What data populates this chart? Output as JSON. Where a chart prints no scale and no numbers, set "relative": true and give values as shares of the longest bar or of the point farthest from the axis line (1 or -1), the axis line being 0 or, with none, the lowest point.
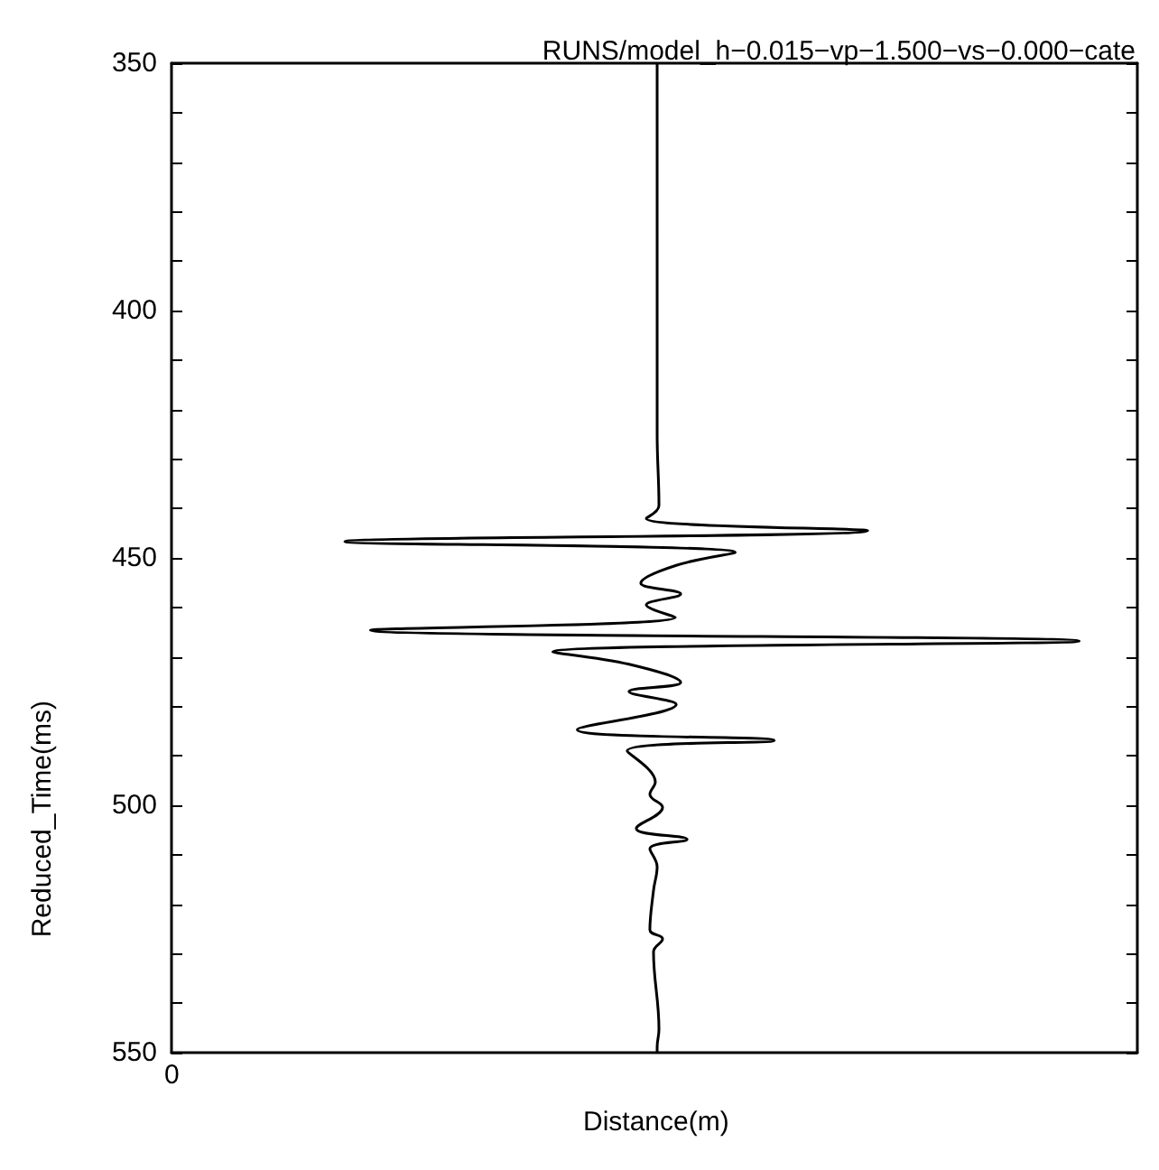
{
  "chart_data": {
    "type": "line",
    "title": "RUNS/model_h−0.015−vp−1.500−vs−0.000−cate",
    "xlabel": "Distance(m)",
    "ylabel": "Reduced_Time(ms)",
    "orientation": "horizontal",
    "relative": true,
    "marker": "none",
    "annotations": [
      "0"
    ],
    "ylim": [
      550,
      350
    ],
    "yticks": [
      350,
      {
        "value": 360,
        "label": null
      },
      {
        "value": 370,
        "label": null
      },
      {
        "value": 380,
        "label": null
      },
      {
        "value": 390,
        "label": null
      },
      400,
      {
        "value": 410,
        "label": null
      },
      {
        "value": 420,
        "label": null
      },
      {
        "value": 430,
        "label": null
      },
      {
        "value": 440,
        "label": null
      },
      450,
      {
        "value": 460,
        "label": null
      },
      {
        "value": 470,
        "label": null
      },
      {
        "value": 480,
        "label": null
      },
      {
        "value": 490,
        "label": null
      },
      500,
      {
        "value": 510,
        "label": null
      },
      {
        "value": 520,
        "label": null
      },
      {
        "value": 530,
        "label": null
      },
      {
        "value": 540,
        "label": null
      },
      550
    ],
    "series": [
      {
        "color": "#000000",
        "x": [
          350,
          424.8,
          439.4,
          442,
          444.5,
          446.7,
          448.9,
          451.5,
          455.1,
          457.3,
          459.5,
          462,
          464.6,
          466.8,
          469,
          471.5,
          475.2,
          477,
          479.6,
          484.7,
          486.9,
          489,
          495.3,
          497.8,
          500.4,
          504.7,
          506.9,
          508.8,
          512.4,
          517.2,
          525.2,
          527,
          529.6,
          545.3,
          548.9,
          550
        ],
        "values": [
          0.535,
          0.535,
          0.537,
          0.523,
          0.767,
          0.191,
          0.621,
          0.556,
          0.517,
          0.561,
          0.523,
          0.555,
          0.219,
          1,
          0.42,
          0.504,
          0.561,
          0.504,
          0.556,
          0.447,
          0.664,
          0.502,
          0.533,
          0.527,
          0.541,
          0.512,
          0.568,
          0.527,
          0.535,
          0.531,
          0.527,
          0.541,
          0.531,
          0.537,
          0.535,
          0.535
        ]
      }
    ]
  }
}
